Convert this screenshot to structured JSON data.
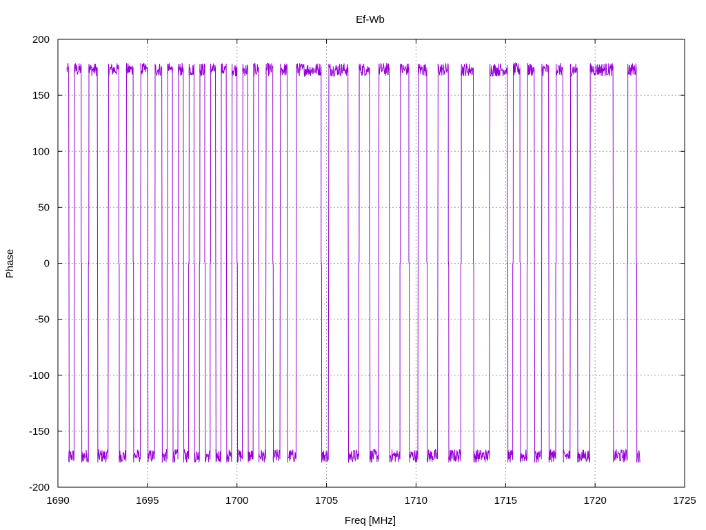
{
  "chart_data": {
    "type": "line",
    "title": "Ef-Wb",
    "xlabel": "Freq [MHz]",
    "ylabel": "Phase",
    "xlim": [
      1690,
      1725
    ],
    "ylim": [
      -200,
      200
    ],
    "xticks": [
      "1690",
      "1695",
      "1700",
      "1705",
      "1710",
      "1715",
      "1720",
      "1725"
    ],
    "yticks": [
      "200",
      "150",
      "100",
      "50",
      "0",
      "-50",
      "-100",
      "-150",
      "-200"
    ],
    "grid": true,
    "legend": "none",
    "color": "#9400d3",
    "series": [
      {
        "x_range": [
          1690.5,
          1722.5
        ],
        "phase_wrap_points_x": [
          1690.6,
          1690.9,
          1691.3,
          1691.7,
          1692.2,
          1692.8,
          1693.4,
          1693.8,
          1694.2,
          1694.6,
          1695.0,
          1695.4,
          1695.8,
          1696.1,
          1696.4,
          1696.7,
          1697.0,
          1697.3,
          1697.6,
          1697.9,
          1698.2,
          1698.5,
          1698.8,
          1699.1,
          1699.4,
          1699.7,
          1700.0,
          1700.3,
          1700.6,
          1700.9,
          1701.2,
          1701.6,
          1702.0,
          1702.4,
          1702.8,
          1703.3,
          1704.7,
          1705.1,
          1706.2,
          1706.8,
          1707.4,
          1707.9,
          1708.5,
          1709.1,
          1709.6,
          1710.1,
          1710.6,
          1711.2,
          1711.8,
          1712.5,
          1713.2,
          1714.1,
          1715.1,
          1715.4,
          1715.8,
          1716.2,
          1716.6,
          1717.0,
          1717.4,
          1717.8,
          1718.2,
          1718.6,
          1719.0,
          1719.7,
          1721.0,
          1721.8,
          1722.3
        ]
      }
    ]
  }
}
